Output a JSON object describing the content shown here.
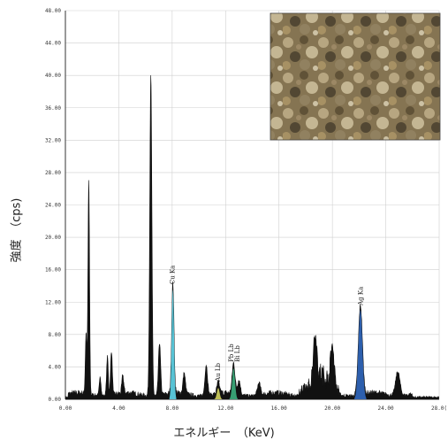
{
  "chart_data": {
    "type": "area",
    "title": "",
    "xlabel": "エネルギー　（KeV)",
    "ylabel": "強度　（cps)",
    "xlim": [
      0,
      28
    ],
    "ylim": [
      0,
      48
    ],
    "grid": true,
    "x_ticks": [
      "0.00",
      "4.00",
      "8.00",
      "12.00",
      "16.00",
      "20.00",
      "24.00",
      "28.0("
    ],
    "y_ticks": [
      "0.00",
      "4.00",
      "8.00",
      "12.00",
      "16.00",
      "20.00",
      "24.00",
      "28.00",
      "32.00",
      "36.00",
      "40.00",
      "44.00",
      "48.00"
    ],
    "peaks": [
      {
        "x": 1.55,
        "y": 7.5
      },
      {
        "x": 1.75,
        "y": 26.5
      },
      {
        "x": 2.6,
        "y": 2.5
      },
      {
        "x": 3.15,
        "y": 4.8
      },
      {
        "x": 3.45,
        "y": 5.5
      },
      {
        "x": 4.3,
        "y": 2.2
      },
      {
        "x": 6.4,
        "y": 39.5
      },
      {
        "x": 7.05,
        "y": 6.5
      },
      {
        "x": 8.05,
        "y": 13.5
      },
      {
        "x": 8.9,
        "y": 2.5
      },
      {
        "x": 10.55,
        "y": 3.8
      },
      {
        "x": 11.45,
        "y": 1.4
      },
      {
        "x": 12.6,
        "y": 3.8
      },
      {
        "x": 13.0,
        "y": 1.8
      },
      {
        "x": 14.5,
        "y": 1.5
      },
      {
        "x": 18.7,
        "y": 5.5
      },
      {
        "x": 20.0,
        "y": 5.0
      },
      {
        "x": 22.1,
        "y": 11.0
      },
      {
        "x": 24.9,
        "y": 3.0
      }
    ],
    "annotations": [
      {
        "text": "Cu Ka",
        "x": 8.05,
        "y": 14.2
      },
      {
        "text": "Au Lb",
        "x": 11.45,
        "y": 2.2
      },
      {
        "text": "Pb Lb",
        "x": 12.45,
        "y": 4.6
      },
      {
        "text": "Bi Lb",
        "x": 12.9,
        "y": 4.6
      },
      {
        "text": "Ag Ka",
        "x": 22.15,
        "y": 11.6
      }
    ],
    "colors": {
      "spectrum": "#111111",
      "cu_ka": "#5ccde0",
      "ag_ka": "#2f64b6",
      "pb_bi_lb": "#3aa878",
      "au_lb": "#c8c85a",
      "grid": "#cfcfcf"
    }
  },
  "inset_image": {
    "name": "sample-surface-photo"
  }
}
